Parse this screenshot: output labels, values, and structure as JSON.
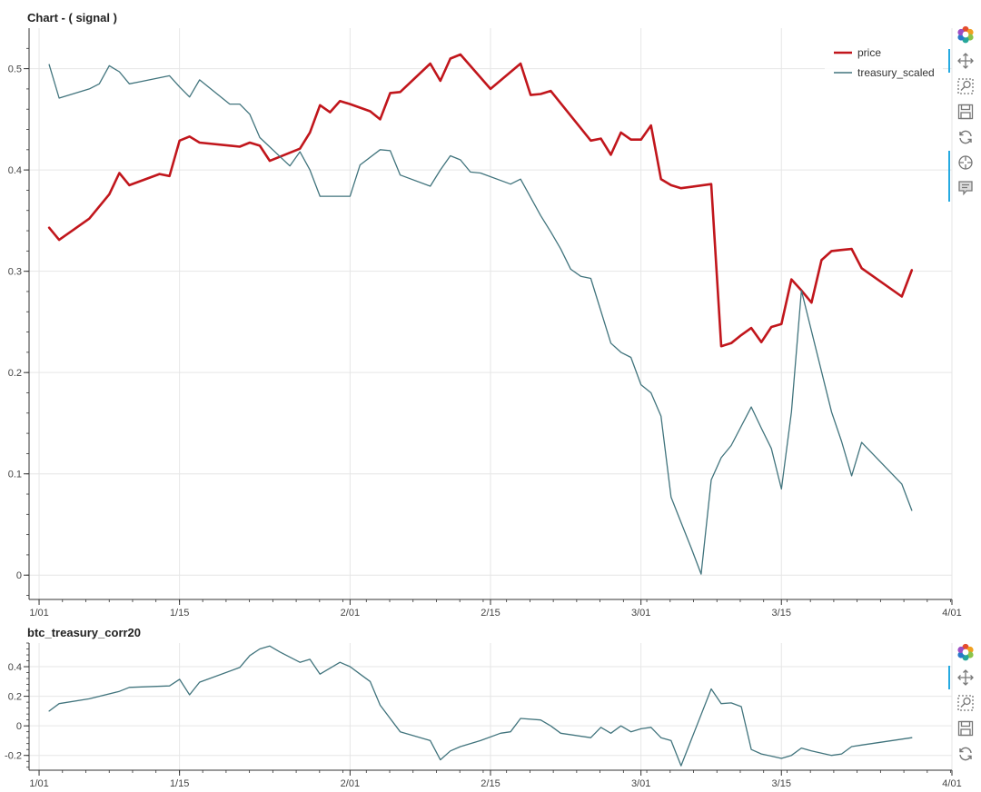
{
  "chart_data": [
    {
      "type": "line",
      "title": "Chart - ( signal )",
      "x_axis": {
        "kind": "datetime",
        "range_days": [
          -1.0,
          91.0
        ],
        "ticks": [
          {
            "day": 0,
            "label": "1/01"
          },
          {
            "day": 14,
            "label": "1/15"
          },
          {
            "day": 31,
            "label": "2/01"
          },
          {
            "day": 45,
            "label": "2/15"
          },
          {
            "day": 60,
            "label": "3/01"
          },
          {
            "day": 74,
            "label": "3/15"
          },
          {
            "day": 91,
            "label": "4/01"
          }
        ]
      },
      "y_axis": {
        "range": [
          -0.024,
          0.54
        ],
        "ticks": [
          {
            "value": 0,
            "label": "0"
          },
          {
            "value": 0.1,
            "label": "0.1"
          },
          {
            "value": 0.2,
            "label": "0.2"
          },
          {
            "value": 0.3,
            "label": "0.3"
          },
          {
            "value": 0.4,
            "label": "0.4"
          },
          {
            "value": 0.5,
            "label": "0.5"
          }
        ]
      },
      "grid": true,
      "legend_position": "top-right",
      "series": [
        {
          "name": "price",
          "color": "#c1161c",
          "x": [
            1,
            2,
            5,
            7,
            8,
            9,
            12,
            13,
            14,
            15,
            16,
            20,
            21,
            22,
            23,
            26,
            27,
            28,
            29,
            30,
            31,
            33,
            34,
            35,
            36,
            39,
            40,
            41,
            42,
            45,
            48,
            49,
            50,
            51,
            55,
            56,
            57,
            58,
            59,
            60,
            61,
            62,
            63,
            64,
            67,
            68,
            69,
            70,
            71,
            72,
            73,
            74,
            75,
            76,
            77,
            78,
            79,
            80,
            81,
            82,
            86,
            87
          ],
          "values": [
            0.343,
            0.331,
            0.352,
            0.376,
            0.397,
            0.385,
            0.396,
            0.394,
            0.429,
            0.433,
            0.427,
            0.423,
            0.427,
            0.424,
            0.409,
            0.421,
            0.437,
            0.464,
            0.457,
            0.468,
            0.465,
            0.458,
            0.45,
            0.476,
            0.477,
            0.505,
            0.488,
            0.51,
            0.514,
            0.48,
            0.505,
            0.474,
            0.475,
            0.478,
            0.429,
            0.431,
            0.415,
            0.437,
            0.43,
            0.43,
            0.444,
            0.391,
            0.385,
            0.382,
            0.386,
            0.226,
            0.229,
            0.237,
            0.244,
            0.23,
            0.245,
            0.248,
            0.292,
            0.281,
            0.269,
            0.311,
            0.32,
            0.321,
            0.322,
            0.303,
            0.275,
            0.301
          ]
        },
        {
          "name": "treasury_scaled",
          "color": "#41747d",
          "x": [
            1,
            2,
            5,
            6,
            7,
            8,
            9,
            10,
            13,
            14,
            15,
            16,
            19,
            20,
            21,
            22,
            25,
            26,
            27,
            28,
            31,
            32,
            34,
            35,
            36,
            39,
            40,
            41,
            42,
            43,
            44,
            47,
            48,
            50,
            51,
            52,
            53,
            54,
            55,
            57,
            58,
            59,
            60,
            61,
            62,
            63,
            64,
            65,
            66,
            67,
            68,
            69,
            71,
            72,
            73,
            74,
            75,
            76,
            79,
            80,
            81,
            82,
            86,
            87
          ],
          "values": [
            0.504,
            0.471,
            0.48,
            0.485,
            0.503,
            0.497,
            0.485,
            0.487,
            0.493,
            0.482,
            0.472,
            0.489,
            0.465,
            0.465,
            0.455,
            0.432,
            0.404,
            0.418,
            0.4,
            0.374,
            0.374,
            0.405,
            0.42,
            0.419,
            0.395,
            0.384,
            0.4,
            0.414,
            0.41,
            0.398,
            0.397,
            0.386,
            0.391,
            0.355,
            0.339,
            0.322,
            0.302,
            0.295,
            0.293,
            0.229,
            0.22,
            0.215,
            0.188,
            0.18,
            0.157,
            0.077,
            0.052,
            0.027,
            0.001,
            0.094,
            0.116,
            0.128,
            0.166,
            0.145,
            0.125,
            0.085,
            0.161,
            0.281,
            0.161,
            0.132,
            0.098,
            0.131,
            0.09,
            0.064
          ]
        }
      ]
    },
    {
      "type": "line",
      "title": "btc_treasury_corr20",
      "x_axis": {
        "kind": "datetime",
        "range_days": [
          -1.0,
          91.0
        ],
        "ticks": [
          {
            "day": 0,
            "label": "1/01"
          },
          {
            "day": 14,
            "label": "1/15"
          },
          {
            "day": 31,
            "label": "2/01"
          },
          {
            "day": 45,
            "label": "2/15"
          },
          {
            "day": 60,
            "label": "3/01"
          },
          {
            "day": 74,
            "label": "3/15"
          },
          {
            "day": 91,
            "label": "4/01"
          }
        ]
      },
      "y_axis": {
        "range": [
          -0.3,
          0.56
        ],
        "ticks": [
          {
            "value": -0.2,
            "label": "-0.2"
          },
          {
            "value": 0,
            "label": "0"
          },
          {
            "value": 0.2,
            "label": "0.2"
          },
          {
            "value": 0.4,
            "label": "0.4"
          }
        ]
      },
      "grid": true,
      "series": [
        {
          "name": "btc_treasury_corr20",
          "color": "#41747d",
          "x": [
            1,
            2,
            5,
            8,
            9,
            13,
            14,
            15,
            16,
            20,
            21,
            22,
            23,
            24,
            26,
            27,
            28,
            30,
            31,
            32,
            33,
            34,
            36,
            39,
            40,
            41,
            42,
            44,
            46,
            47,
            48,
            50,
            51,
            52,
            55,
            56,
            57,
            58,
            59,
            60,
            61,
            62,
            63,
            64,
            67,
            68,
            69,
            70,
            71,
            72,
            73,
            74,
            75,
            76,
            77,
            79,
            80,
            81,
            82,
            86,
            87
          ],
          "values": [
            0.1,
            0.15,
            0.183,
            0.233,
            0.26,
            0.27,
            0.315,
            0.21,
            0.295,
            0.395,
            0.475,
            0.52,
            0.54,
            0.5,
            0.43,
            0.45,
            0.35,
            0.43,
            0.4,
            0.35,
            0.3,
            0.14,
            -0.04,
            -0.1,
            -0.23,
            -0.17,
            -0.14,
            -0.1,
            -0.05,
            -0.04,
            0.05,
            0.04,
            0.0,
            -0.05,
            -0.08,
            -0.01,
            -0.05,
            0.0,
            -0.04,
            -0.02,
            -0.01,
            -0.08,
            -0.1,
            -0.27,
            0.25,
            0.15,
            0.155,
            0.13,
            -0.16,
            -0.19,
            -0.205,
            -0.22,
            -0.2,
            -0.15,
            -0.17,
            -0.2,
            -0.19,
            -0.14,
            -0.13,
            -0.09,
            -0.08
          ]
        }
      ]
    }
  ]
}
